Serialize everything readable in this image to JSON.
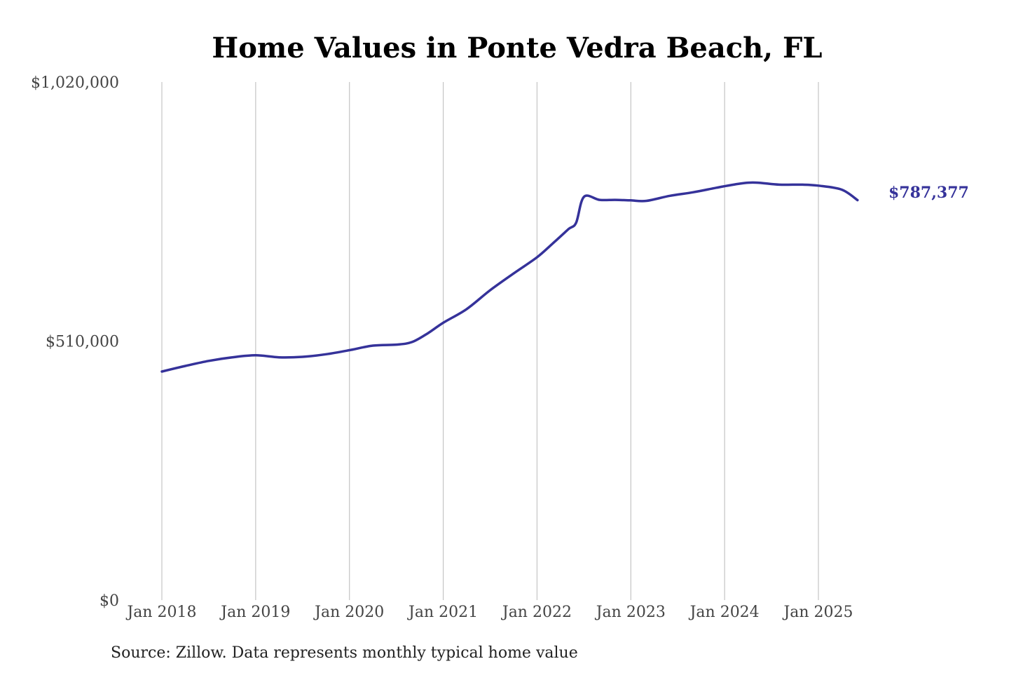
{
  "chart_data": {
    "type": "line",
    "title": "Home Values in Ponte Vedra Beach, FL",
    "source": "Source: Zillow. Data represents monthly typical home value",
    "ylim": [
      0,
      1020000
    ],
    "y_ticks": [
      {
        "value": 0,
        "label": "$0"
      },
      {
        "value": 510000,
        "label": "$510,000"
      },
      {
        "value": 1020000,
        "label": "$1,020,000"
      }
    ],
    "x_ticks": [
      {
        "value": "2018-01",
        "label": "Jan 2018"
      },
      {
        "value": "2019-01",
        "label": "Jan 2019"
      },
      {
        "value": "2020-01",
        "label": "Jan 2020"
      },
      {
        "value": "2021-01",
        "label": "Jan 2021"
      },
      {
        "value": "2022-01",
        "label": "Jan 2022"
      },
      {
        "value": "2023-01",
        "label": "Jan 2023"
      },
      {
        "value": "2024-01",
        "label": "Jan 2024"
      },
      {
        "value": "2025-01",
        "label": "Jan 2025"
      }
    ],
    "grid": {
      "vertical": true,
      "horizontal": false
    },
    "line_color": "#35329a",
    "end_label": "$787,377",
    "series": [
      {
        "x": [
          "2018-01",
          "2018-04",
          "2018-07",
          "2018-10",
          "2019-01",
          "2019-04",
          "2019-07",
          "2019-10",
          "2020-01",
          "2020-04",
          "2020-07",
          "2020-09",
          "2020-11",
          "2021-01",
          "2021-04",
          "2021-07",
          "2021-10",
          "2022-01",
          "2022-03",
          "2022-05",
          "2022-06",
          "2022-07",
          "2022-09",
          "2022-11",
          "2023-01",
          "2023-03",
          "2023-06",
          "2023-09",
          "2023-12",
          "2024-03",
          "2024-05",
          "2024-08",
          "2024-11",
          "2025-01",
          "2025-04",
          "2025-06"
        ],
        "y": [
          450000,
          461000,
          471000,
          478000,
          482000,
          478000,
          479000,
          484000,
          492000,
          501000,
          503000,
          508000,
          525000,
          546000,
          573000,
          610000,
          643000,
          675000,
          702000,
          730000,
          743000,
          794000,
          788000,
          788000,
          787000,
          786000,
          796000,
          803000,
          812000,
          820000,
          822000,
          818000,
          818000,
          816000,
          808000,
          787377
        ]
      }
    ]
  }
}
